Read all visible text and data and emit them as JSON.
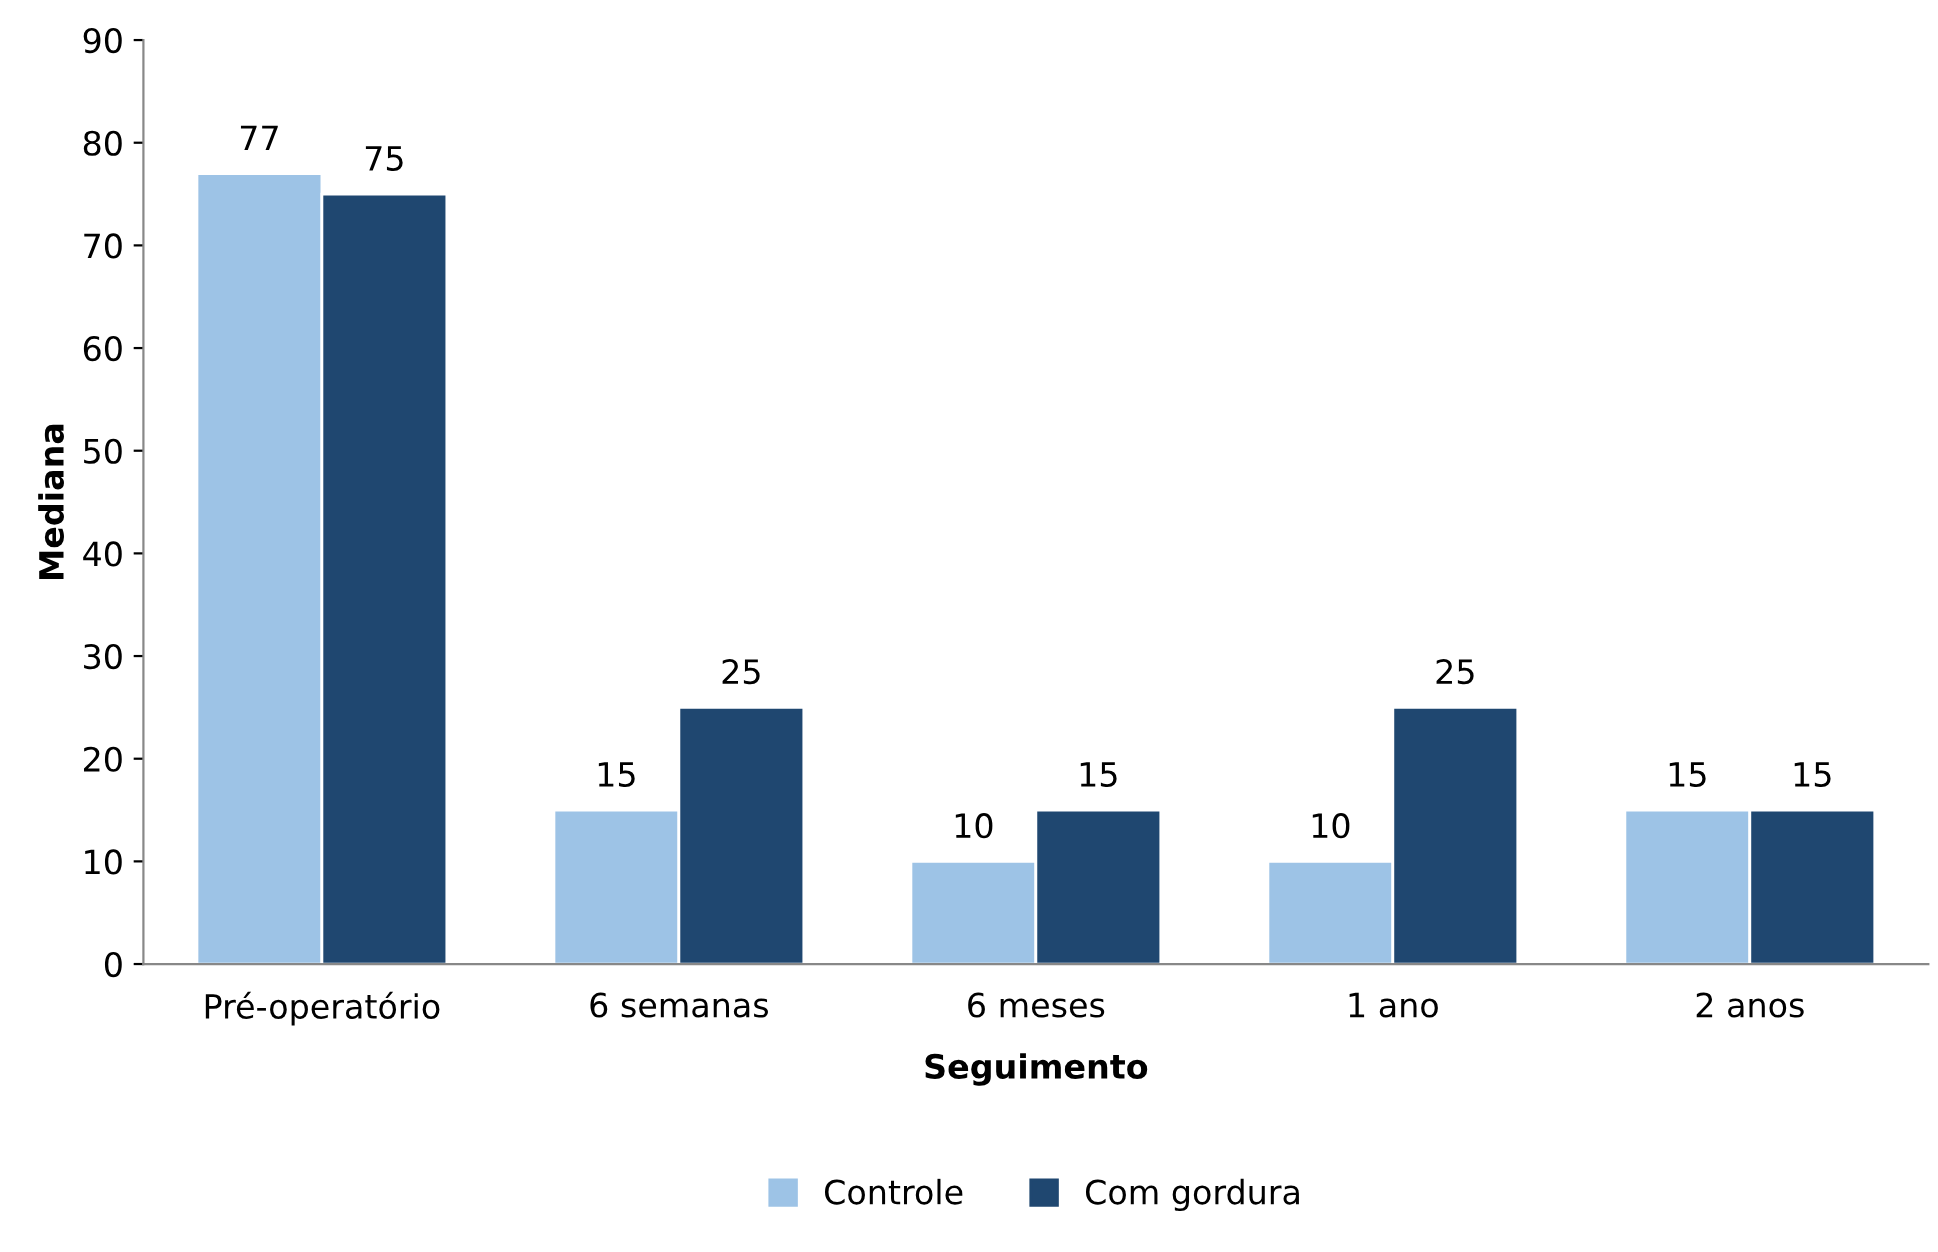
{
  "chart_data": {
    "type": "bar",
    "xlabel": "Seguimento",
    "ylabel": "Mediana",
    "categories": [
      "Pré-operatório",
      "6 semanas",
      "6 meses",
      "1 ano",
      "2 anos"
    ],
    "series": [
      {
        "name": "Controle",
        "color": "#9dc3e6",
        "values": [
          77,
          15,
          10,
          10,
          15
        ]
      },
      {
        "name": "Com gordura",
        "color": "#1f4770",
        "values": [
          75,
          25,
          15,
          25,
          15
        ]
      }
    ],
    "ylim": [
      0,
      90
    ],
    "yticks": [
      0,
      10,
      20,
      30,
      40,
      50,
      60,
      70,
      80,
      90
    ],
    "data_labels": true,
    "grid": false,
    "legend": "bottom"
  }
}
